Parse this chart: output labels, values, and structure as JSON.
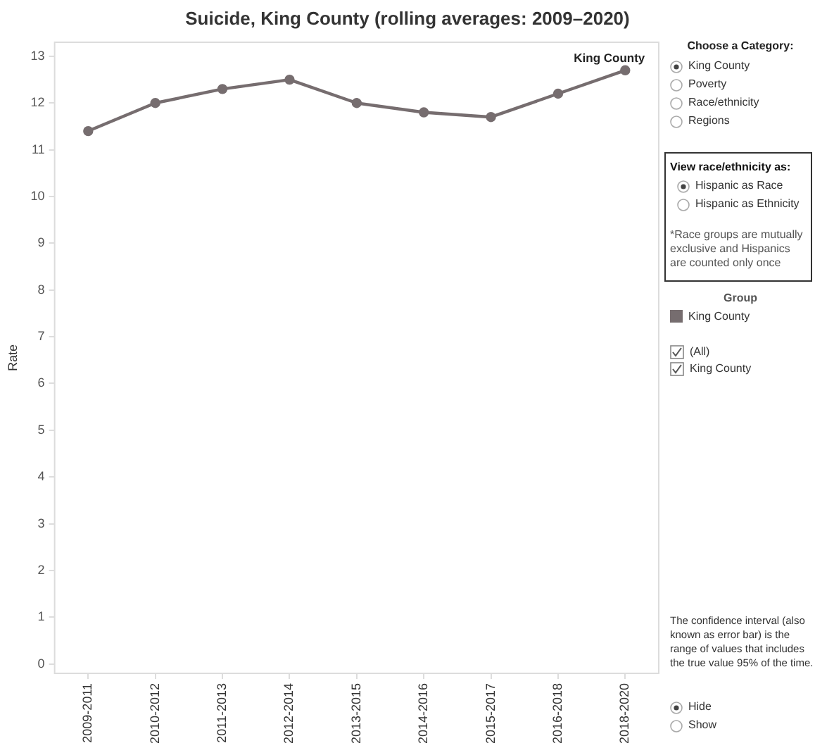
{
  "chart_data": {
    "type": "line",
    "title": "Suicide, King County (rolling averages: 2009–2020)",
    "ylabel": "Rate",
    "categories": [
      "2009-2011",
      "2010-2012",
      "2011-2013",
      "2012-2014",
      "2013-2015",
      "2014-2016",
      "2015-2017",
      "2016-2018",
      "2018-2020"
    ],
    "series": [
      {
        "name": "King County",
        "color": "#766d6f",
        "values": [
          11.4,
          12.0,
          12.3,
          12.5,
          12.0,
          11.8,
          11.7,
          12.2,
          12.7
        ]
      }
    ],
    "ylim": [
      -0.2,
      13.3
    ],
    "yticks": [
      0,
      1,
      2,
      3,
      4,
      5,
      6,
      7,
      8,
      9,
      10,
      11,
      12,
      13
    ],
    "grid": false,
    "legend": "right",
    "legend_title": "Group",
    "marker": "circle",
    "line_style": "solid",
    "annotations": [
      "Choose a Category:",
      "King County",
      "Poverty",
      "Race/ethnicity",
      "Regions",
      "View race/ethnicity as:",
      "Hispanic as Race",
      "Hispanic as Ethnicity",
      "*Race groups are mutually exclusive and Hispanics are counted only once",
      "(All)",
      "King County",
      "The confidence interval (also known as error bar) is the range of values that includes the true value 95% of the time.",
      "Hide",
      "Show"
    ]
  }
}
